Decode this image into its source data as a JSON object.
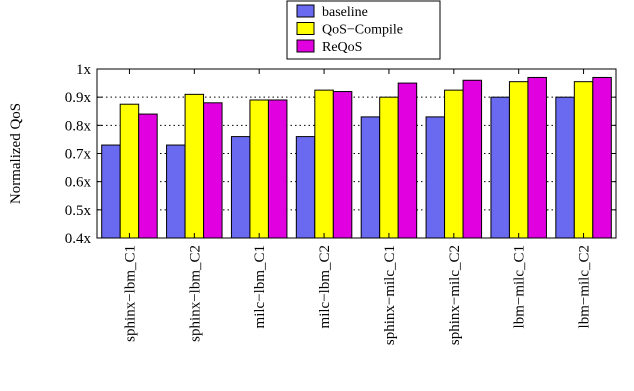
{
  "chart_data": {
    "type": "bar",
    "title": "",
    "xlabel": "",
    "ylabel": "Normalized QoS",
    "ylim": [
      0.4,
      1.0
    ],
    "yticks": [
      {
        "value": 0.4,
        "label": "0.4x"
      },
      {
        "value": 0.5,
        "label": "0.5x"
      },
      {
        "value": 0.6,
        "label": "0.6x"
      },
      {
        "value": 0.7,
        "label": "0.7x"
      },
      {
        "value": 0.8,
        "label": "0.8x"
      },
      {
        "value": 0.9,
        "label": "0.9x"
      },
      {
        "value": 1.0,
        "label": "1x"
      }
    ],
    "grid": "horizontal dotted",
    "legend_position": "top-center",
    "categories": [
      "sphinx−lbm_C1",
      "sphinx−lbm_C2",
      "milc−lbm_C1",
      "milc−lbm_C2",
      "sphinx−milc_C1",
      "sphinx−milc_C2",
      "lbm−milc_C1",
      "lbm−milc_C2"
    ],
    "series": [
      {
        "name": "baseline",
        "color": "#6a6af0",
        "values": [
          0.73,
          0.73,
          0.76,
          0.76,
          0.83,
          0.83,
          0.9,
          0.9
        ]
      },
      {
        "name": "QoS−Compile",
        "color": "#ffff00",
        "values": [
          0.875,
          0.91,
          0.89,
          0.925,
          0.9,
          0.925,
          0.955,
          0.955
        ]
      },
      {
        "name": "ReQoS",
        "color": "#e000e0",
        "values": [
          0.84,
          0.88,
          0.89,
          0.92,
          0.95,
          0.96,
          0.97,
          0.97
        ]
      }
    ]
  }
}
